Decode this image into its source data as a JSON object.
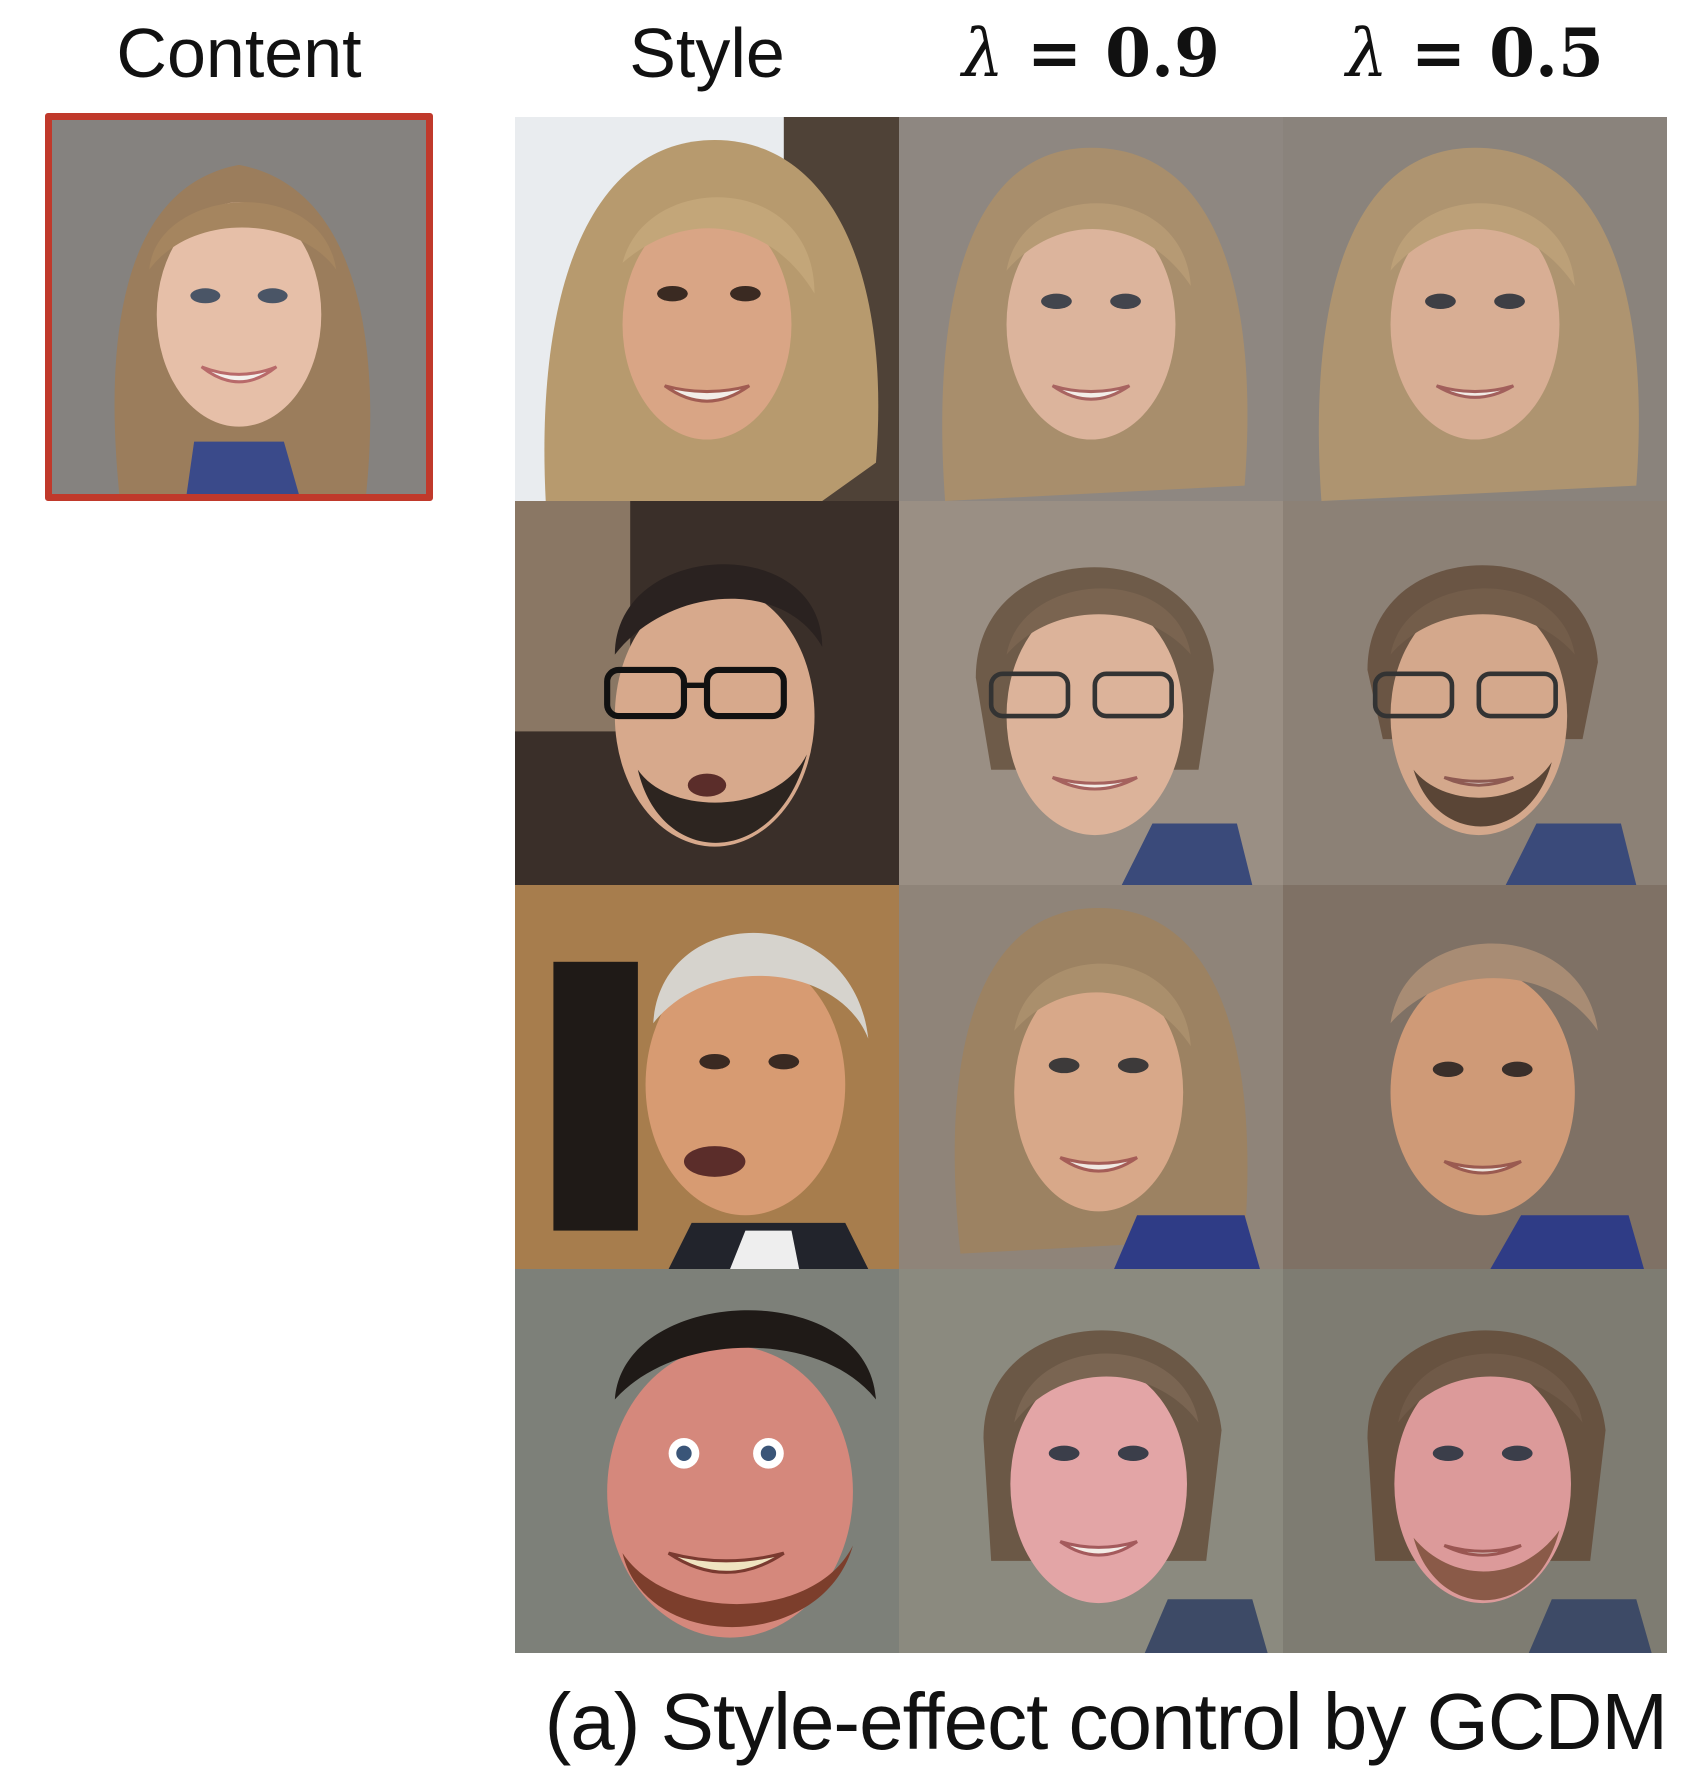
{
  "headers": {
    "content": "Content",
    "style": "Style",
    "lambda_1": {
      "symbol": "λ",
      "equation": "= 0.9"
    },
    "lambda_2": {
      "symbol": "λ",
      "equation": "= 0.5"
    }
  },
  "caption": "(a) Style-effect control by GCDM",
  "colors": {
    "content_frame_border": "#c0392b"
  },
  "grid": {
    "columns": [
      "style",
      "lambda_0.9",
      "lambda_0.5"
    ],
    "rows": [
      {
        "style": "blonde-bob-woman-photo",
        "lambda_0.9": "blended-woman-bob-photo",
        "lambda_0.5": "blended-woman-bob-photo"
      },
      {
        "style": "man-glasses-beard-photo",
        "lambda_0.9": "blended-glasses-photo",
        "lambda_0.5": "blended-glasses-beard-photo"
      },
      {
        "style": "older-man-gray-hair-photo",
        "lambda_0.9": "blended-older-woman-photo",
        "lambda_0.5": "blended-older-man-photo"
      },
      {
        "style": "man-wide-eyes-beard-photo",
        "lambda_0.9": "blended-pink-face-photo",
        "lambda_0.5": "blended-pink-beard-photo"
      }
    ]
  }
}
